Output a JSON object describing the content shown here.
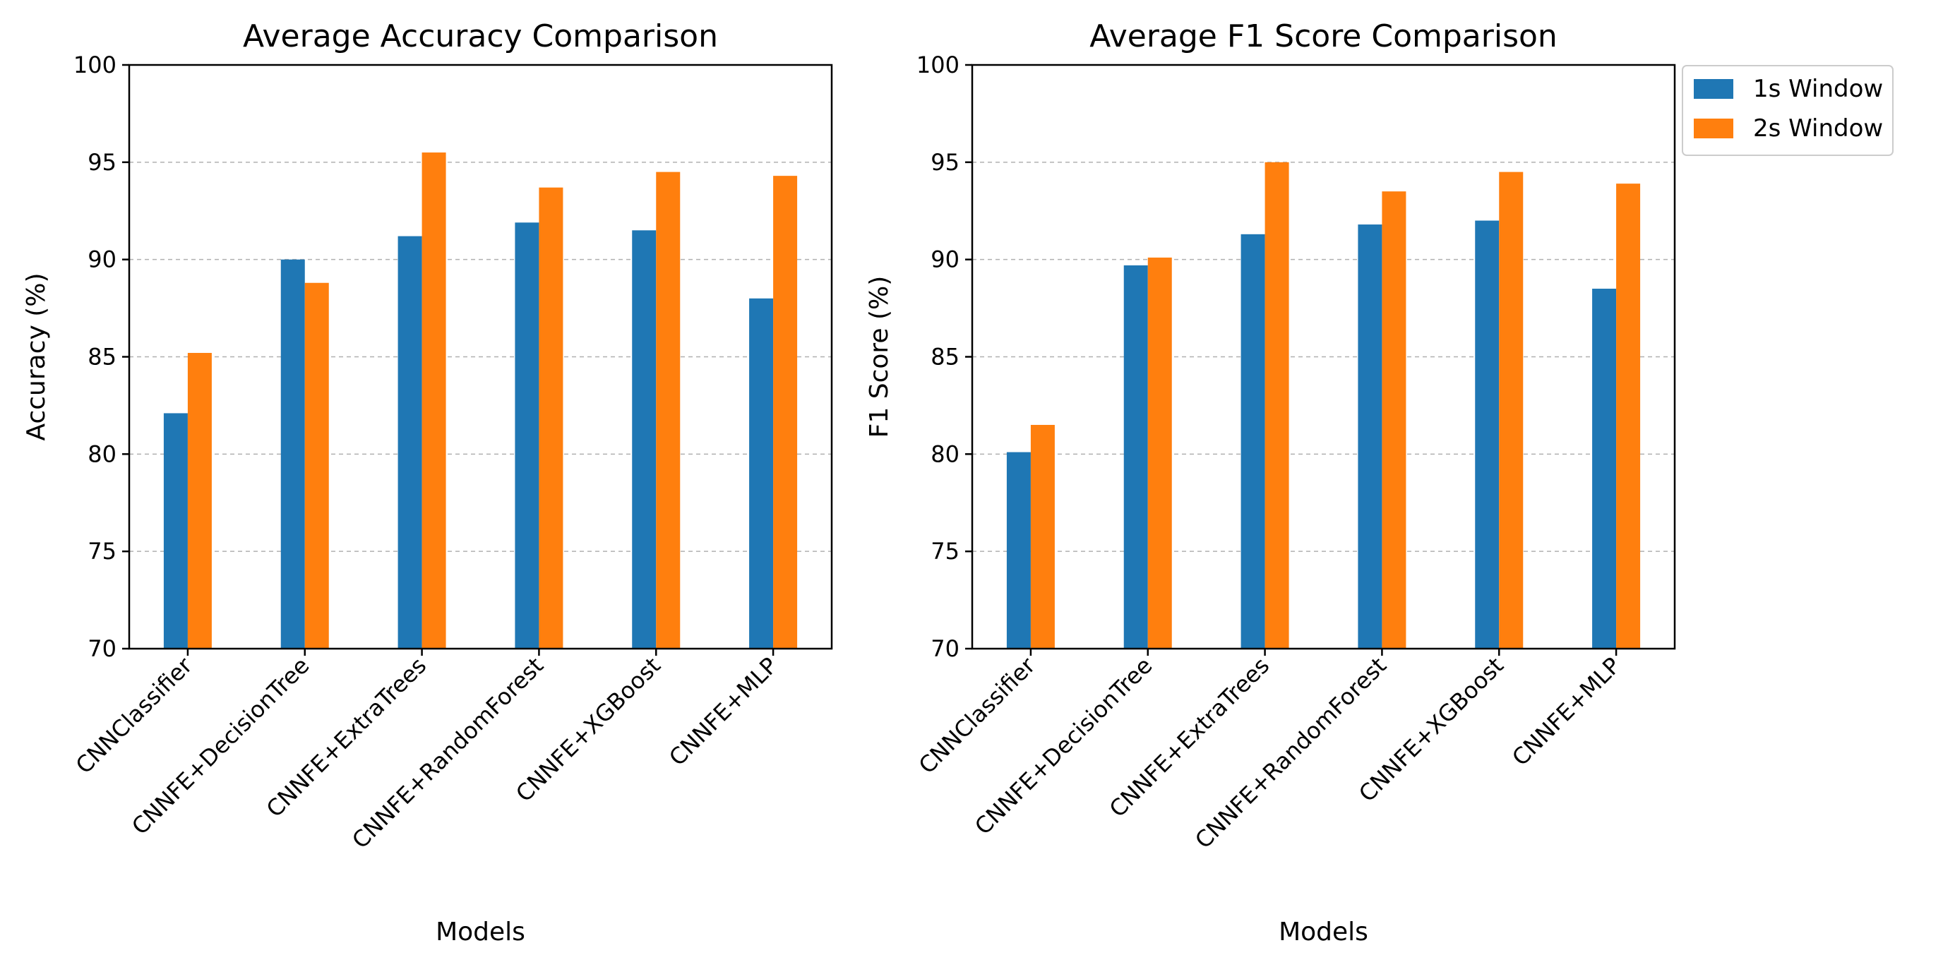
{
  "chart_data": [
    {
      "type": "bar",
      "title": "Average Accuracy Comparison",
      "xlabel": "Models",
      "ylabel": "Accuracy (%)",
      "ylim": [
        70,
        100
      ],
      "yticks": [
        70,
        75,
        80,
        85,
        90,
        95,
        100
      ],
      "grid": "y-dashed",
      "categories": [
        "CNNClassifier",
        "CNNFE+DecisionTree",
        "CNNFE+ExtraTrees",
        "CNNFE+RandomForest",
        "CNNFE+XGBoost",
        "CNNFE+MLP"
      ],
      "series": [
        {
          "name": "1s Window",
          "color": "#1f77b4",
          "values": [
            82.1,
            90.0,
            91.2,
            91.9,
            91.5,
            88.0
          ]
        },
        {
          "name": "2s Window",
          "color": "#ff7f0e",
          "values": [
            85.2,
            88.8,
            95.5,
            93.7,
            94.5,
            94.3
          ]
        }
      ]
    },
    {
      "type": "bar",
      "title": "Average F1 Score Comparison",
      "xlabel": "Models",
      "ylabel": "F1 Score (%)",
      "ylim": [
        70,
        100
      ],
      "yticks": [
        70,
        75,
        80,
        85,
        90,
        95,
        100
      ],
      "grid": "y-dashed",
      "legend": "outside-top-right",
      "categories": [
        "CNNClassifier",
        "CNNFE+DecisionTree",
        "CNNFE+ExtraTrees",
        "CNNFE+RandomForest",
        "CNNFE+XGBoost",
        "CNNFE+MLP"
      ],
      "series": [
        {
          "name": "1s Window",
          "color": "#1f77b4",
          "values": [
            80.1,
            89.7,
            91.3,
            91.8,
            92.0,
            88.5
          ]
        },
        {
          "name": "2s Window",
          "color": "#ff7f0e",
          "values": [
            81.5,
            90.1,
            95.0,
            93.5,
            94.5,
            93.9
          ]
        }
      ]
    }
  ]
}
